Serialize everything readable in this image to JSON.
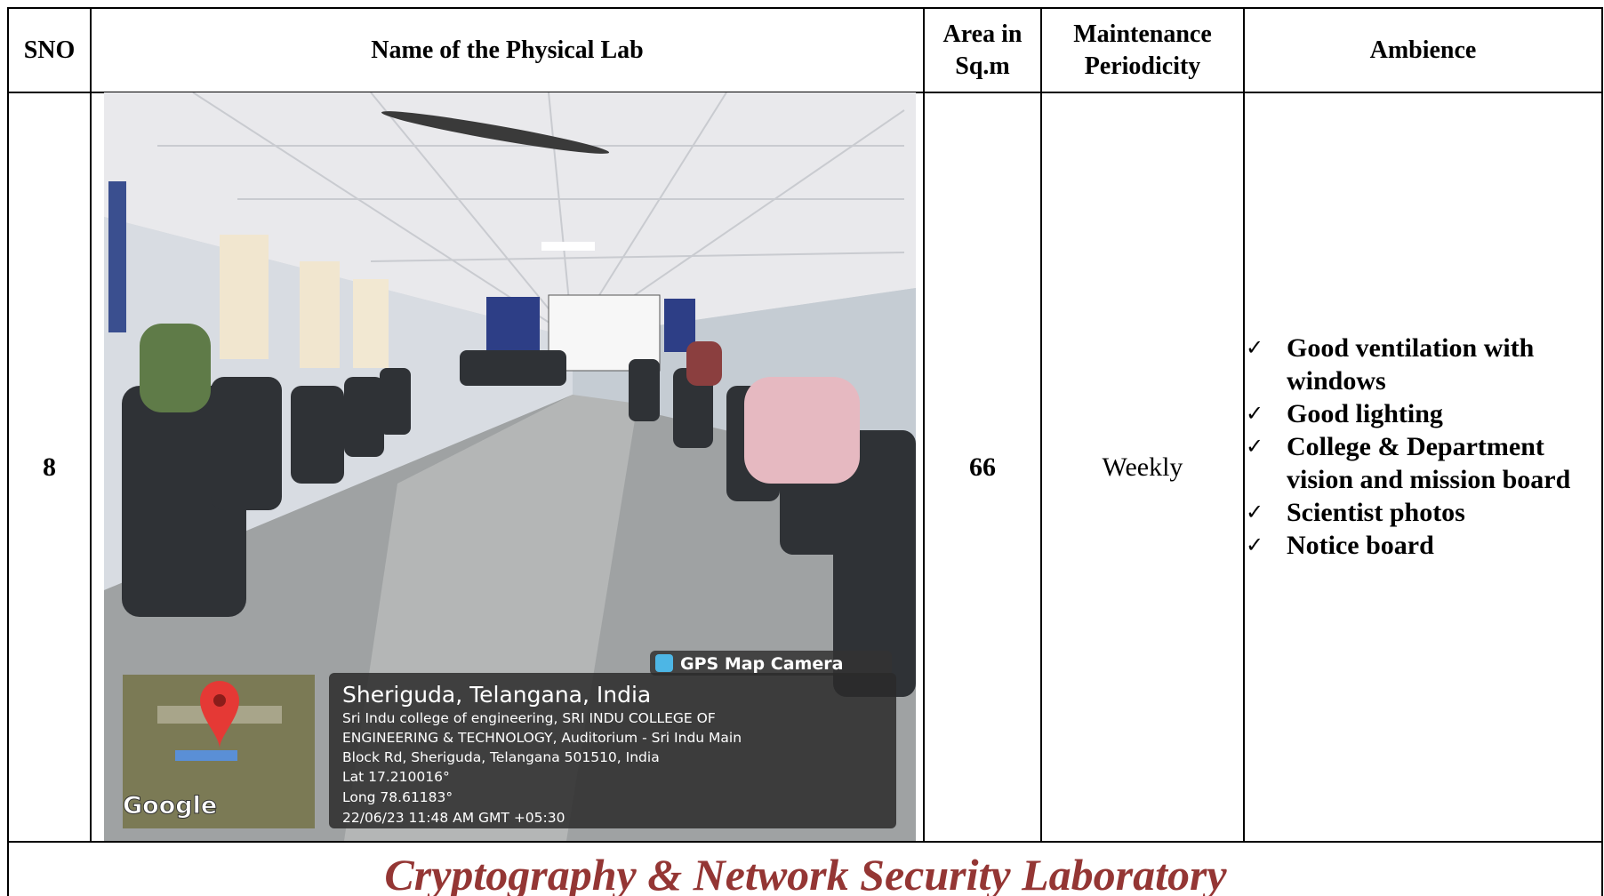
{
  "table": {
    "headers": [
      "SNO",
      "Name of the Physical Lab",
      "Area in Sq.m",
      "Maintenance Periodicity",
      "Ambience"
    ],
    "rows": [
      {
        "sno": "8",
        "area": "66",
        "maintenance": "Weekly",
        "ambience": [
          "Good ventilation with windows",
          "Good lighting",
          "College & Department vision and mission board",
          "Scientist photos",
          "Notice board"
        ]
      }
    ]
  },
  "photo": {
    "badge": "GPS Map Camera",
    "place": "Sheriguda, Telangana, India",
    "address": [
      "Sri Indu college of engineering, SRI INDU COLLEGE OF",
      "ENGINEERING & TECHNOLOGY, Auditorium - Sri Indu Main",
      "Block Rd, Sheriguda, Telangana 501510, India"
    ],
    "lat": "Lat 17.210016°",
    "long": "Long 78.61183°",
    "timestamp": "22/06/23 11:48 AM GMT +05:30",
    "map_brand": "Google"
  },
  "caption": "Cryptography & Network Security Laboratory"
}
